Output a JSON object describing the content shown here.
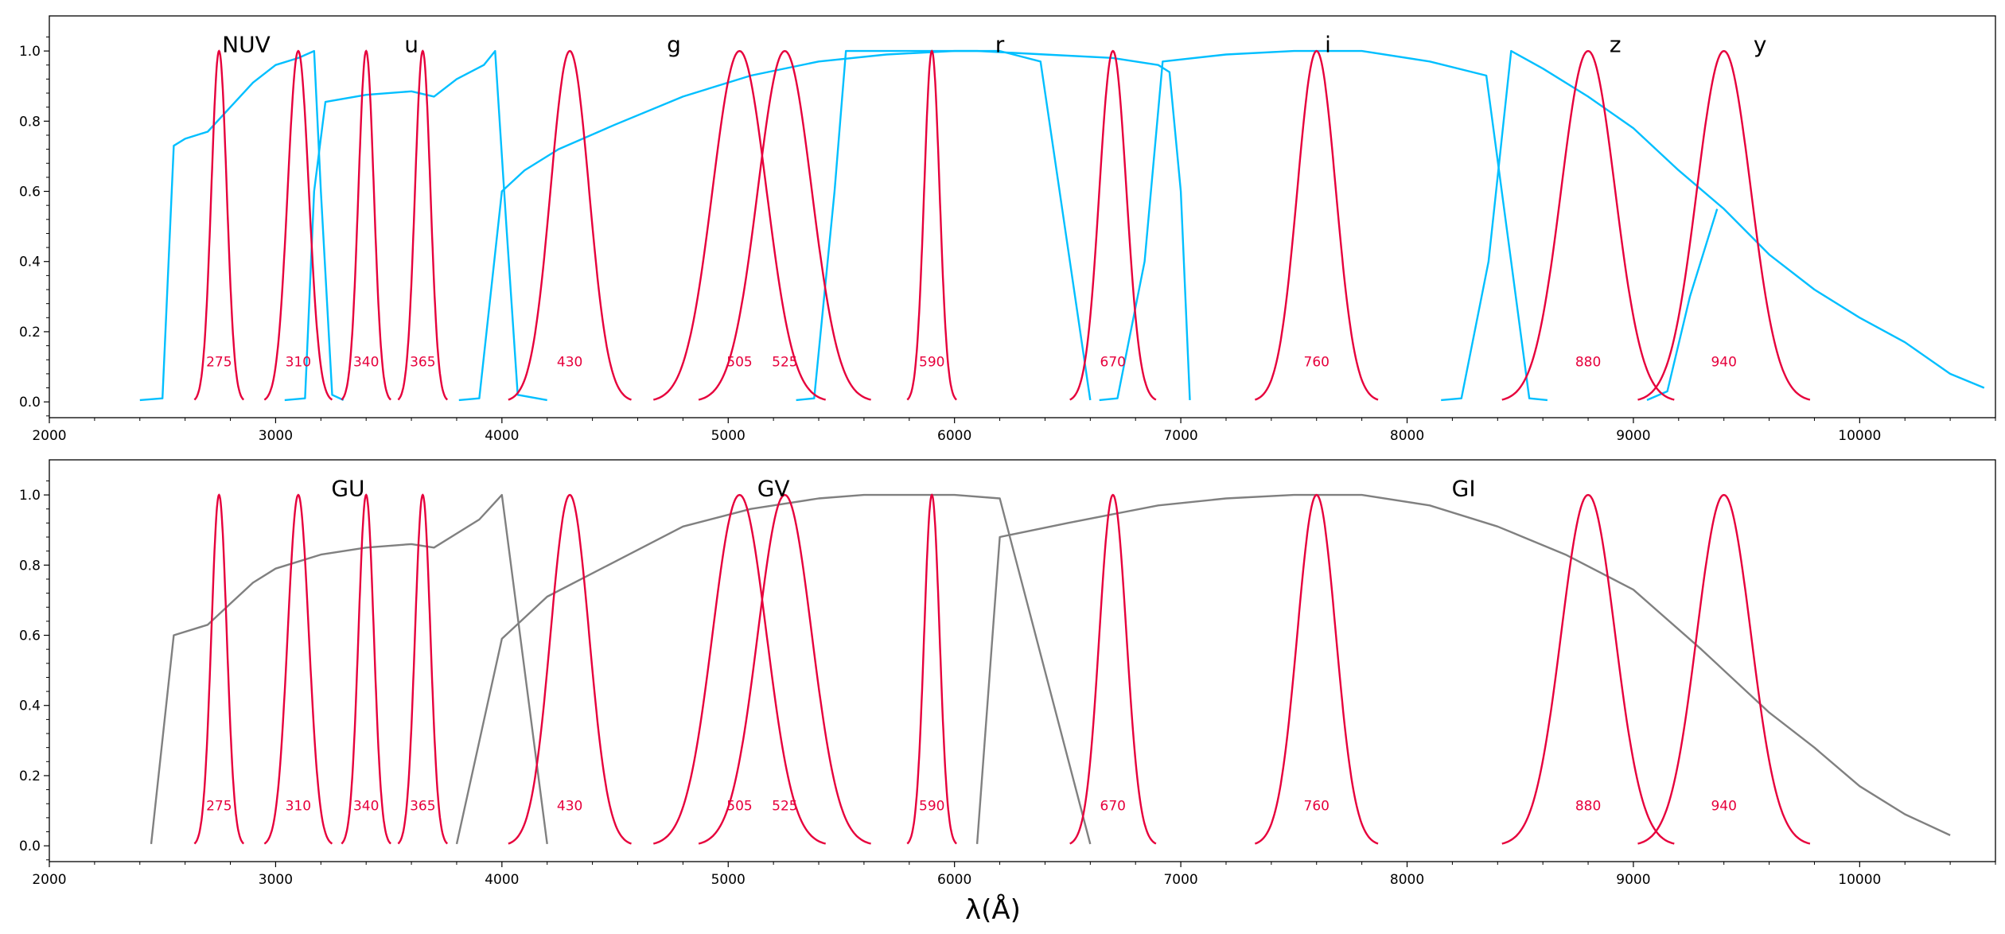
{
  "chart_data": {
    "type": "line",
    "xlabel": "λ(Å)",
    "colors": {
      "broad_top": "#00bfff",
      "broad_bottom": "#808080",
      "narrow": "#e6003c",
      "axes": "#000000"
    },
    "narrowband": {
      "centers": [
        2750,
        3100,
        3400,
        3650,
        4300,
        5050,
        5250,
        5900,
        6700,
        7600,
        8800,
        9400
      ],
      "fwhm": [
        80,
        110,
        80,
        80,
        200,
        280,
        280,
        80,
        140,
        200,
        280,
        280
      ],
      "labels": [
        "275",
        "310",
        "340",
        "365",
        "430",
        "505",
        "525",
        "590",
        "670",
        "760",
        "880",
        "940"
      ],
      "label_y": 0.115
    },
    "panels": [
      {
        "name": "top",
        "xlim": [
          2000,
          10600
        ],
        "ylim": [
          -0.045,
          1.1
        ],
        "xticks": [
          2000,
          3000,
          4000,
          5000,
          6000,
          7000,
          8000,
          9000,
          10000
        ],
        "yticks": [
          0.0,
          0.2,
          0.4,
          0.6,
          0.8,
          1.0
        ],
        "series": [
          {
            "name": "NUV",
            "label_x": 2870,
            "label_y": 1.02,
            "points": [
              [
                2400,
                0.005
              ],
              [
                2500,
                0.01
              ],
              [
                2550,
                0.73
              ],
              [
                2600,
                0.75
              ],
              [
                2700,
                0.77
              ],
              [
                2800,
                0.84
              ],
              [
                2900,
                0.91
              ],
              [
                3000,
                0.96
              ],
              [
                3100,
                0.98
              ],
              [
                3170,
                1.0
              ],
              [
                3200,
                0.6
              ],
              [
                3250,
                0.02
              ],
              [
                3300,
                0.005
              ]
            ]
          },
          {
            "name": "u",
            "label_x": 3600,
            "label_y": 1.02,
            "points": [
              [
                3040,
                0.005
              ],
              [
                3130,
                0.01
              ],
              [
                3170,
                0.6
              ],
              [
                3220,
                0.855
              ],
              [
                3400,
                0.875
              ],
              [
                3600,
                0.885
              ],
              [
                3700,
                0.87
              ],
              [
                3800,
                0.92
              ],
              [
                3920,
                0.96
              ],
              [
                3970,
                1.0
              ],
              [
                4020,
                0.5
              ],
              [
                4070,
                0.02
              ],
              [
                4200,
                0.005
              ]
            ]
          },
          {
            "name": "g",
            "label_x": 4760,
            "label_y": 1.02,
            "points": [
              [
                3810,
                0.005
              ],
              [
                3900,
                0.01
              ],
              [
                4000,
                0.6
              ],
              [
                4100,
                0.66
              ],
              [
                4250,
                0.72
              ],
              [
                4500,
                0.79
              ],
              [
                4800,
                0.87
              ],
              [
                5100,
                0.93
              ],
              [
                5400,
                0.97
              ],
              [
                5700,
                0.99
              ],
              [
                6000,
                1.0
              ],
              [
                6200,
                1.0
              ],
              [
                6380,
                0.97
              ],
              [
                6600,
                0.005
              ]
            ]
          },
          {
            "name": "r",
            "label_x": 6200,
            "label_y": 1.02,
            "points": [
              [
                5300,
                0.005
              ],
              [
                5380,
                0.01
              ],
              [
                5470,
                0.6
              ],
              [
                5520,
                1.0
              ],
              [
                5800,
                1.0
              ],
              [
                6100,
                1.0
              ],
              [
                6400,
                0.99
              ],
              [
                6700,
                0.98
              ],
              [
                6900,
                0.96
              ],
              [
                6950,
                0.94
              ],
              [
                7000,
                0.6
              ],
              [
                7040,
                0.005
              ]
            ]
          },
          {
            "name": "i",
            "label_x": 7650,
            "label_y": 1.02,
            "points": [
              [
                6640,
                0.005
              ],
              [
                6720,
                0.01
              ],
              [
                6840,
                0.4
              ],
              [
                6920,
                0.97
              ],
              [
                7200,
                0.99
              ],
              [
                7500,
                1.0
              ],
              [
                7800,
                1.0
              ],
              [
                8100,
                0.97
              ],
              [
                8350,
                0.93
              ],
              [
                8460,
                0.4
              ],
              [
                8540,
                0.01
              ],
              [
                8620,
                0.005
              ]
            ]
          },
          {
            "name": "z",
            "label_x": 8920,
            "label_y": 1.02,
            "points": [
              [
                8150,
                0.005
              ],
              [
                8240,
                0.01
              ],
              [
                8360,
                0.4
              ],
              [
                8460,
                1.0
              ],
              [
                8600,
                0.95
              ],
              [
                8800,
                0.87
              ],
              [
                9000,
                0.78
              ],
              [
                9200,
                0.66
              ],
              [
                9400,
                0.55
              ],
              [
                9600,
                0.42
              ],
              [
                9800,
                0.32
              ],
              [
                10000,
                0.24
              ],
              [
                10200,
                0.17
              ],
              [
                10400,
                0.08
              ],
              [
                10550,
                0.04
              ]
            ]
          },
          {
            "name": "y",
            "label_x": 9560,
            "label_y": 1.02,
            "points": [
              [
                9060,
                0.005
              ],
              [
                9150,
                0.03
              ],
              [
                9250,
                0.3
              ],
              [
                9370,
                0.55
              ]
            ]
          }
        ]
      },
      {
        "name": "bottom",
        "xlim": [
          2000,
          10600
        ],
        "ylim": [
          -0.045,
          1.1
        ],
        "xticks": [
          2000,
          3000,
          4000,
          5000,
          6000,
          7000,
          8000,
          9000,
          10000
        ],
        "yticks": [
          0.0,
          0.2,
          0.4,
          0.6,
          0.8,
          1.0
        ],
        "series": [
          {
            "name": "GU",
            "label_x": 3320,
            "label_y": 1.02,
            "points": [
              [
                2450,
                0.005
              ],
              [
                2550,
                0.6
              ],
              [
                2700,
                0.63
              ],
              [
                2800,
                0.69
              ],
              [
                2900,
                0.75
              ],
              [
                3000,
                0.79
              ],
              [
                3200,
                0.83
              ],
              [
                3400,
                0.85
              ],
              [
                3600,
                0.86
              ],
              [
                3700,
                0.85
              ],
              [
                3800,
                0.89
              ],
              [
                3900,
                0.93
              ],
              [
                4000,
                1.0
              ],
              [
                4200,
                0.005
              ]
            ]
          },
          {
            "name": "GV",
            "label_x": 5200,
            "label_y": 1.02,
            "points": [
              [
                3800,
                0.005
              ],
              [
                4000,
                0.59
              ],
              [
                4200,
                0.71
              ],
              [
                4500,
                0.81
              ],
              [
                4800,
                0.91
              ],
              [
                5100,
                0.96
              ],
              [
                5400,
                0.99
              ],
              [
                5600,
                1.0
              ],
              [
                5800,
                1.0
              ],
              [
                6000,
                1.0
              ],
              [
                6200,
                0.99
              ],
              [
                6600,
                0.005
              ]
            ]
          },
          {
            "name": "GI",
            "label_x": 8250,
            "label_y": 1.02,
            "points": [
              [
                6100,
                0.005
              ],
              [
                6200,
                0.88
              ],
              [
                6500,
                0.92
              ],
              [
                6900,
                0.97
              ],
              [
                7200,
                0.99
              ],
              [
                7500,
                1.0
              ],
              [
                7800,
                1.0
              ],
              [
                8100,
                0.97
              ],
              [
                8400,
                0.91
              ],
              [
                8700,
                0.83
              ],
              [
                9000,
                0.73
              ],
              [
                9300,
                0.56
              ],
              [
                9600,
                0.38
              ],
              [
                9800,
                0.28
              ],
              [
                10000,
                0.17
              ],
              [
                10200,
                0.09
              ],
              [
                10400,
                0.03
              ]
            ]
          }
        ]
      }
    ]
  }
}
